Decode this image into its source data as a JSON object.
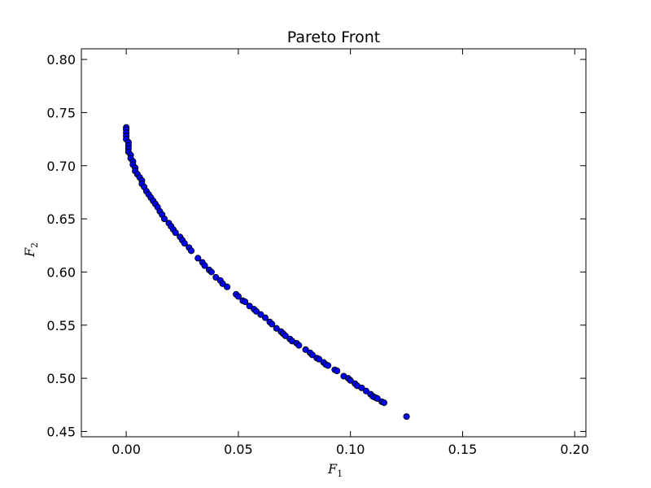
{
  "chart_data": {
    "type": "scatter",
    "title": "Pareto Front",
    "xlabel": "F",
    "xlabel_sub": "1",
    "ylabel": "F",
    "ylabel_sub": "2",
    "xlim": [
      -0.02,
      0.205
    ],
    "ylim": [
      0.445,
      0.81
    ],
    "x_ticks": [
      0.0,
      0.05,
      0.1,
      0.15,
      0.2
    ],
    "x_tick_labels": [
      "0.00",
      "0.05",
      "0.10",
      "0.15",
      "0.20"
    ],
    "y_ticks": [
      0.45,
      0.5,
      0.55,
      0.6,
      0.65,
      0.7,
      0.75,
      0.8
    ],
    "y_tick_labels": [
      "0.45",
      "0.50",
      "0.55",
      "0.60",
      "0.65",
      "0.70",
      "0.75",
      "0.80"
    ],
    "grid": false,
    "marker_color": "#0000ff",
    "marker_edge_color": "#000000",
    "series": [
      {
        "points": [
          [
            0.0,
            0.736
          ],
          [
            0.0,
            0.734
          ],
          [
            0.0,
            0.731
          ],
          [
            0.0,
            0.728
          ],
          [
            0.0,
            0.725
          ],
          [
            0.001,
            0.722
          ],
          [
            0.001,
            0.719
          ],
          [
            0.001,
            0.716
          ],
          [
            0.001,
            0.713
          ],
          [
            0.002,
            0.71
          ],
          [
            0.002,
            0.707
          ],
          [
            0.003,
            0.704
          ],
          [
            0.003,
            0.701
          ],
          [
            0.004,
            0.698
          ],
          [
            0.004,
            0.695
          ],
          [
            0.005,
            0.692
          ],
          [
            0.006,
            0.689
          ],
          [
            0.007,
            0.686
          ],
          [
            0.007,
            0.683
          ],
          [
            0.008,
            0.68
          ],
          [
            0.009,
            0.676
          ],
          [
            0.01,
            0.673
          ],
          [
            0.011,
            0.67
          ],
          [
            0.012,
            0.667
          ],
          [
            0.013,
            0.664
          ],
          [
            0.014,
            0.661
          ],
          [
            0.015,
            0.657
          ],
          [
            0.016,
            0.654
          ],
          [
            0.017,
            0.65
          ],
          [
            0.019,
            0.646
          ],
          [
            0.02,
            0.643
          ],
          [
            0.021,
            0.64
          ],
          [
            0.022,
            0.637
          ],
          [
            0.024,
            0.633
          ],
          [
            0.025,
            0.63
          ],
          [
            0.026,
            0.627
          ],
          [
            0.028,
            0.623
          ],
          [
            0.029,
            0.62
          ],
          [
            0.032,
            0.613
          ],
          [
            0.034,
            0.609
          ],
          [
            0.035,
            0.606
          ],
          [
            0.037,
            0.602
          ],
          [
            0.038,
            0.6
          ],
          [
            0.04,
            0.595
          ],
          [
            0.042,
            0.592
          ],
          [
            0.043,
            0.589
          ],
          [
            0.045,
            0.586
          ],
          [
            0.049,
            0.579
          ],
          [
            0.05,
            0.577
          ],
          [
            0.052,
            0.573
          ],
          [
            0.053,
            0.572
          ],
          [
            0.055,
            0.568
          ],
          [
            0.057,
            0.565
          ],
          [
            0.058,
            0.563
          ],
          [
            0.06,
            0.56
          ],
          [
            0.062,
            0.557
          ],
          [
            0.064,
            0.553
          ],
          [
            0.065,
            0.551
          ],
          [
            0.067,
            0.547
          ],
          [
            0.069,
            0.544
          ],
          [
            0.07,
            0.542
          ],
          [
            0.071,
            0.54
          ],
          [
            0.073,
            0.537
          ],
          [
            0.074,
            0.535
          ],
          [
            0.076,
            0.533
          ],
          [
            0.077,
            0.531
          ],
          [
            0.08,
            0.527
          ],
          [
            0.082,
            0.524
          ],
          [
            0.083,
            0.522
          ],
          [
            0.085,
            0.519
          ],
          [
            0.086,
            0.518
          ],
          [
            0.088,
            0.515
          ],
          [
            0.089,
            0.513
          ],
          [
            0.09,
            0.512
          ],
          [
            0.093,
            0.508
          ],
          [
            0.094,
            0.507
          ],
          [
            0.097,
            0.502
          ],
          [
            0.099,
            0.5
          ],
          [
            0.1,
            0.498
          ],
          [
            0.102,
            0.495
          ],
          [
            0.103,
            0.493
          ],
          [
            0.105,
            0.491
          ],
          [
            0.107,
            0.488
          ],
          [
            0.109,
            0.485
          ],
          [
            0.11,
            0.483
          ],
          [
            0.111,
            0.482
          ],
          [
            0.112,
            0.481
          ],
          [
            0.114,
            0.478
          ],
          [
            0.115,
            0.477
          ],
          [
            0.125,
            0.464
          ]
        ]
      }
    ]
  }
}
